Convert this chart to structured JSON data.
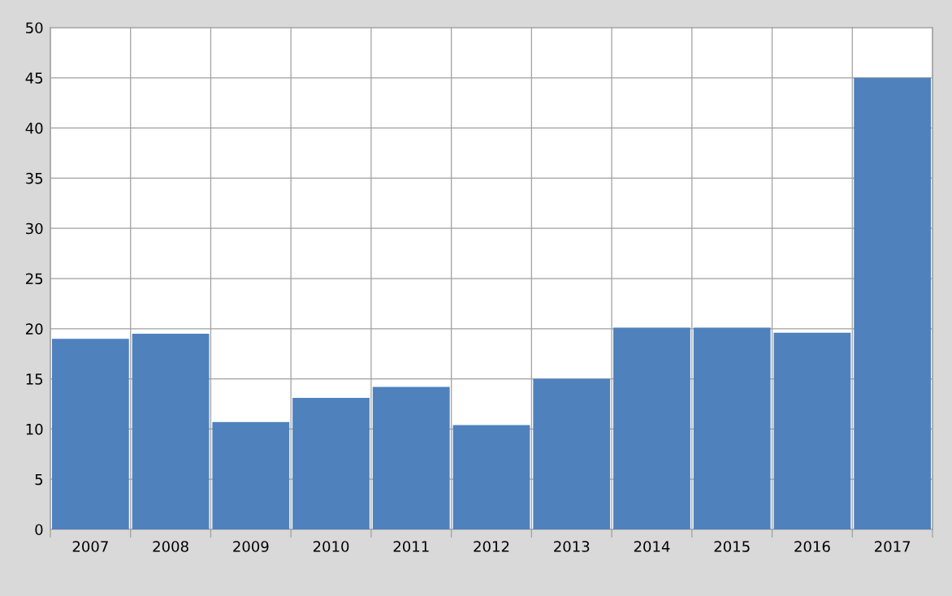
{
  "chart_data": {
    "type": "bar",
    "categories": [
      "2007",
      "2008",
      "2009",
      "2010",
      "2011",
      "2012",
      "2013",
      "2014",
      "2015",
      "2016",
      "2017"
    ],
    "values": [
      19.0,
      19.5,
      10.7,
      13.1,
      14.2,
      10.4,
      15.0,
      20.1,
      20.1,
      19.6,
      45.0
    ],
    "color": "#4f81bd",
    "ylim": [
      0,
      50
    ],
    "yticks": [
      0,
      5,
      10,
      15,
      20,
      25,
      30,
      35,
      40,
      45,
      50
    ],
    "grid": true
  }
}
